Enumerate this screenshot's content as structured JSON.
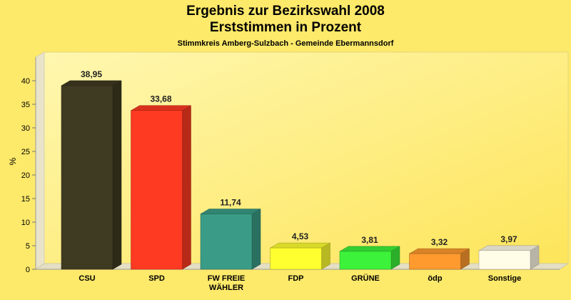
{
  "chart_data": {
    "type": "bar",
    "title": "Ergebnis zur Bezirkswahl 2008",
    "title_line2": "Erststimmen in Prozent",
    "subtitle": "Stimmkreis Amberg-Sulzbach - Gemeinde Ebermannsdorf",
    "xlabel": "",
    "ylabel": "%",
    "ylim": [
      0,
      43
    ],
    "yticks": [
      0,
      5,
      10,
      15,
      20,
      25,
      30,
      35,
      40
    ],
    "categories": [
      [
        "CSU"
      ],
      [
        "SPD"
      ],
      [
        "FW FREIE",
        "WÄHLER"
      ],
      [
        "FDP"
      ],
      [
        "GRÜNE"
      ],
      [
        "ödp"
      ],
      [
        "Sonstige"
      ]
    ],
    "values": [
      38.95,
      33.68,
      11.74,
      4.53,
      3.81,
      3.32,
      3.97
    ],
    "value_labels": [
      "38,95",
      "33,68",
      "11,74",
      "4,53",
      "3,81",
      "3,32",
      "3,97"
    ],
    "colors": [
      "#3f3a22",
      "#ff3a22",
      "#3a9c86",
      "#ffff30",
      "#3cf23a",
      "#ff9a2e",
      "#fffce8"
    ],
    "grid": false,
    "legend": "none"
  }
}
